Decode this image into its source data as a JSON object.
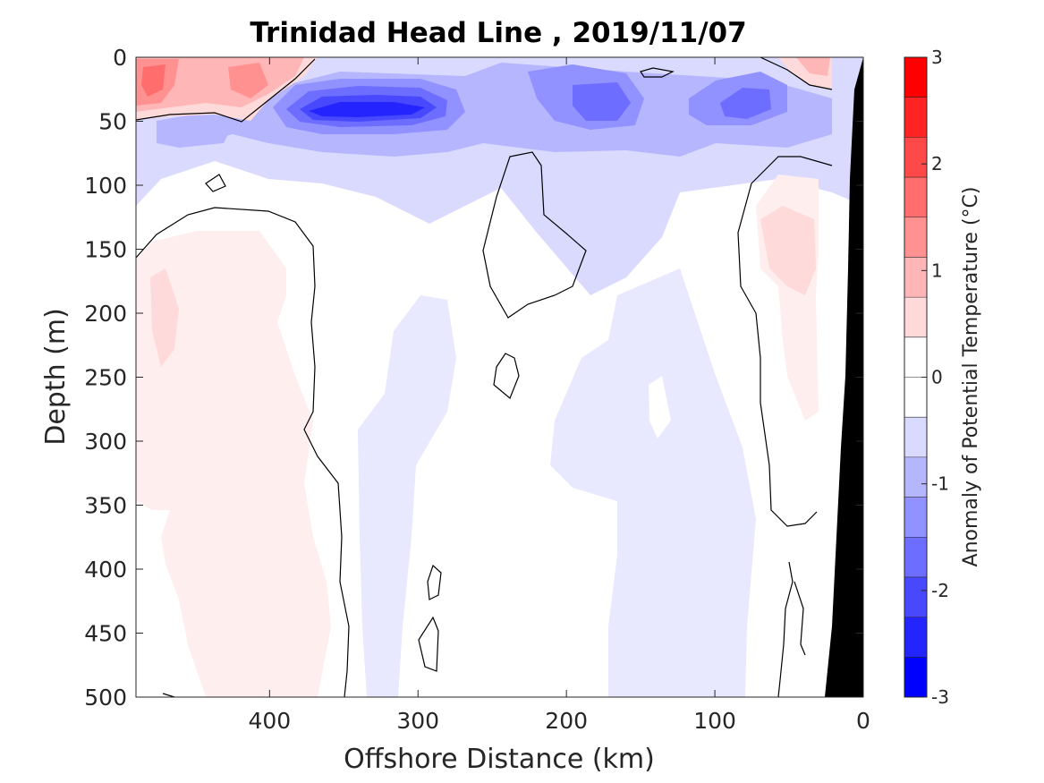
{
  "chart_data": {
    "type": "heatmap",
    "title": "Trinidad Head Line , 2019/11/07",
    "xlabel": "Offshore Distance (km)",
    "ylabel": "Depth (m)",
    "xlim": [
      490,
      0
    ],
    "ylim": [
      0,
      500
    ],
    "x_reversed": true,
    "y_reversed": true,
    "x_ticks": [
      "400",
      "300",
      "200",
      "100",
      "0"
    ],
    "x_tick_values": [
      400,
      300,
      200,
      100,
      0
    ],
    "y_ticks": [
      "0",
      "50",
      "100",
      "150",
      "200",
      "250",
      "300",
      "350",
      "400",
      "450",
      "500"
    ],
    "y_tick_values": [
      0,
      50,
      100,
      150,
      200,
      250,
      300,
      350,
      400,
      450,
      500
    ],
    "colorbar": {
      "label": "Anomaly of Potential Temperature (°C)",
      "range": [
        -3,
        3
      ],
      "tick_labels": [
        "3",
        "2",
        "1",
        "0",
        "-1",
        "-2",
        "-3"
      ],
      "tick_values": [
        3,
        2,
        1,
        0,
        -1,
        -2,
        -3
      ],
      "colors": [
        "#ff0000",
        "#ff2424",
        "#ff4848",
        "#ff6d6d",
        "#ff9191",
        "#ffb6b6",
        "#ffdada",
        "#ffffff",
        "#ffffff",
        "#dadaff",
        "#b6b6ff",
        "#9191ff",
        "#6d6dff",
        "#4848ff",
        "#2424ff",
        "#0000ff"
      ]
    },
    "features": [
      {
        "name": "surface warm anomaly",
        "x": [
          490,
          360
        ],
        "depth": [
          0,
          50
        ],
        "anomaly": 1.2
      },
      {
        "name": "nearshore surface warm anomaly",
        "x": [
          60,
          20
        ],
        "depth": [
          0,
          25
        ],
        "anomaly": 0.8
      },
      {
        "name": "subsurface cold core",
        "x": [
          380,
          270
        ],
        "depth": [
          25,
          85
        ],
        "anomaly": -2.3
      },
      {
        "name": "cold patch mid-shelf",
        "x": [
          210,
          130
        ],
        "depth": [
          15,
          75
        ],
        "anomaly": -1.4
      },
      {
        "name": "cold patch inner",
        "x": [
          110,
          50
        ],
        "depth": [
          15,
          80
        ],
        "anomaly": -1.3
      },
      {
        "name": "deep warm anomaly offshore",
        "x": [
          490,
          370
        ],
        "depth": [
          140,
          500
        ],
        "anomaly": 0.3
      },
      {
        "name": "warm anomaly nearshore",
        "x": [
          80,
          30
        ],
        "depth": [
          100,
          320
        ],
        "anomaly": 0.5
      },
      {
        "name": "weak cold band",
        "x": [
          350,
          280
        ],
        "depth": [
          200,
          500
        ],
        "anomaly": -0.3
      },
      {
        "name": "weak cold band inner",
        "x": [
          230,
          90
        ],
        "depth": [
          200,
          500
        ],
        "anomaly": -0.3
      }
    ],
    "topography": {
      "x": [
        22,
        0
      ],
      "depth": [
        500,
        0
      ],
      "color": "#000000"
    }
  }
}
